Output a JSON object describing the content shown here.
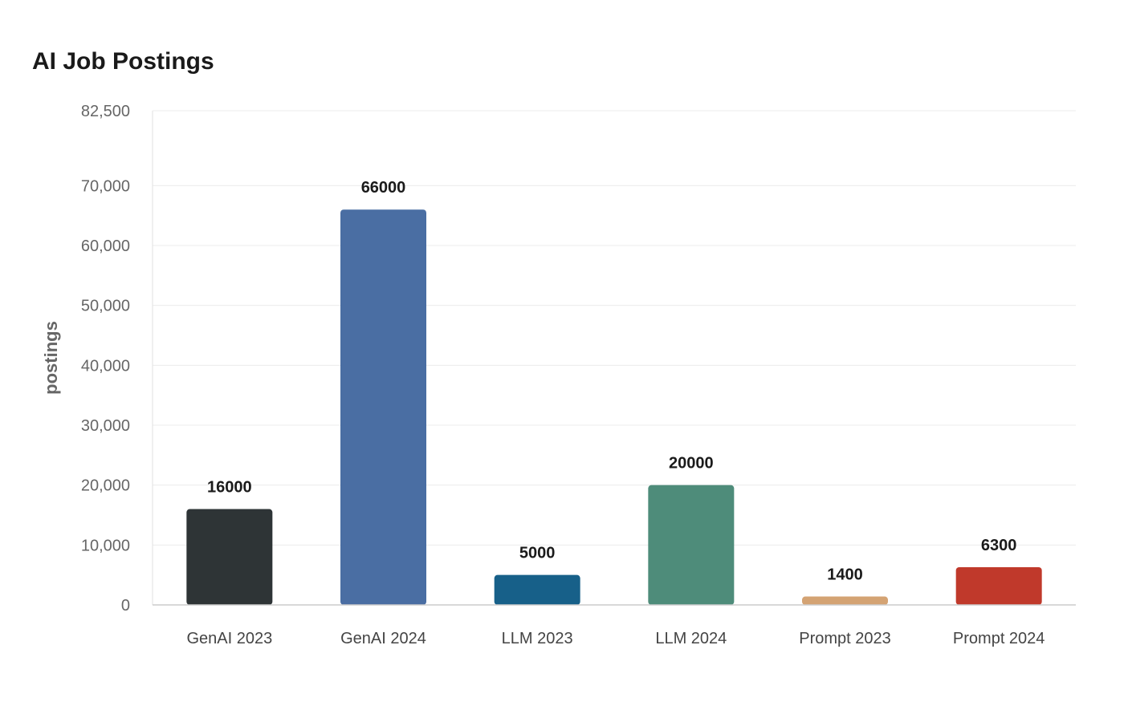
{
  "chart_data": {
    "type": "bar",
    "title": "AI Job Postings",
    "xlabel": "",
    "ylabel": "postings",
    "categories": [
      "GenAI 2023",
      "GenAI 2024",
      "LLM 2023",
      "LLM 2024",
      "Prompt 2023",
      "Prompt 2024"
    ],
    "values": [
      16000,
      66000,
      5000,
      20000,
      1400,
      6300
    ],
    "colors": [
      "#2e3436",
      "#4a6ea3",
      "#176089",
      "#4e8c7a",
      "#d4a373",
      "#c0392b"
    ],
    "ylim": [
      0,
      82500
    ],
    "yticks": [
      0,
      10000,
      20000,
      30000,
      40000,
      50000,
      60000,
      70000,
      82500
    ],
    "ytick_labels": [
      "0",
      "10,000",
      "20,000",
      "30,000",
      "40,000",
      "50,000",
      "60,000",
      "70,000",
      "82,500"
    ],
    "grid": true,
    "legend": "none"
  }
}
